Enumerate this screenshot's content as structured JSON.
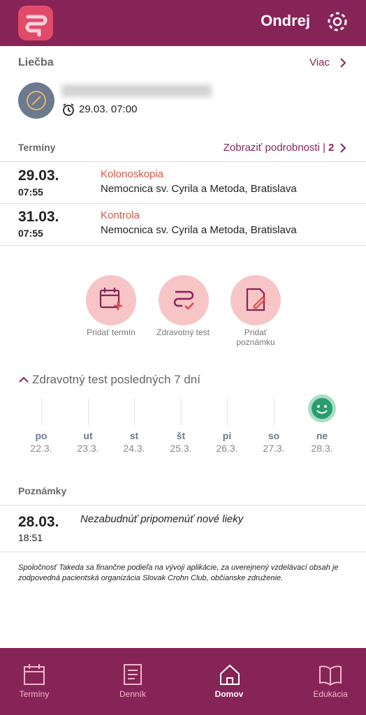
{
  "header": {
    "user": "Ondrej"
  },
  "treatment": {
    "title": "Liečba",
    "more": "Viac",
    "time": "29.03. 07:00"
  },
  "appointments": {
    "title": "Termíny",
    "details": "Zobraziť podrobnosti |",
    "count": 2,
    "items": [
      {
        "date": "29.03.",
        "time": "07:55",
        "type": "Kolonoskopia",
        "place": "Nemocnica sv. Cyrila a Metoda, Bratislava"
      },
      {
        "date": "31.03.",
        "time": "07:55",
        "type": "Kontrola",
        "place": "Nemocnica sv. Cyrila a Metoda, Bratislava"
      }
    ]
  },
  "actions": [
    "Pridať termín",
    "Zdravotný test",
    "Pridať poznámku"
  ],
  "health_test": {
    "title": "Zdravotný test posledných 7 dní",
    "days": [
      {
        "day": "po",
        "date": "22.3."
      },
      {
        "day": "ut",
        "date": "23.3."
      },
      {
        "day": "st",
        "date": "24.3."
      },
      {
        "day": "št",
        "date": "25.3."
      },
      {
        "day": "pi",
        "date": "26.3."
      },
      {
        "day": "so",
        "date": "27.3."
      },
      {
        "day": "ne",
        "date": "28.3."
      }
    ]
  },
  "notes": {
    "title": "Poznámky",
    "items": [
      {
        "date": "28.03.",
        "time": "18:51",
        "text": "Nezabudnúť pripomenúť nové lieky"
      }
    ]
  },
  "disclaimer": "Spoločnosť Takeda sa finančne podieľa na vývoji aplikácie, za uverejnený vzdelávací obsah je zodpovedná pacientská organizácia Slovak Crohn Club, občianske združenie.",
  "nav": [
    "Termíny",
    "Denník",
    "Domov",
    "Edukácia"
  ]
}
